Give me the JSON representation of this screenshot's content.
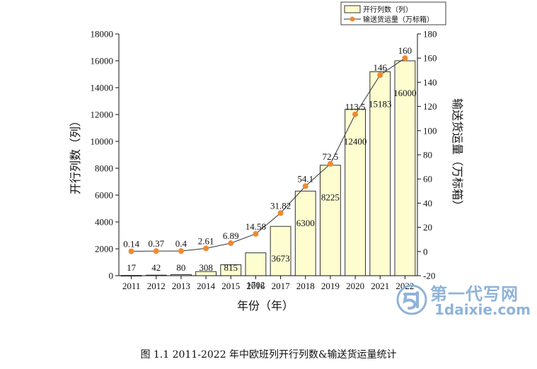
{
  "chart_data": {
    "type": "bar",
    "categories": [
      "2011",
      "2012",
      "2013",
      "2014",
      "2015",
      "2016",
      "2017",
      "2018",
      "2019",
      "2020",
      "2021",
      "2022"
    ],
    "xlabel": "年份（年）",
    "ylabel_left": "开行列数（列）",
    "ylabel_right": "输送货运量（万标箱）",
    "y_left_lim": [
      0,
      18000
    ],
    "y_left_ticks": [
      0,
      2000,
      4000,
      6000,
      8000,
      10000,
      12000,
      14000,
      16000,
      18000
    ],
    "y_right_lim": [
      -20,
      180
    ],
    "y_right_ticks": [
      -20,
      0,
      20,
      40,
      60,
      80,
      100,
      120,
      140,
      160,
      180
    ],
    "series": [
      {
        "name": "开行列数（列）",
        "type": "bar",
        "axis": "left",
        "values": [
          17,
          42,
          80,
          308,
          815,
          1702,
          3673,
          6300,
          8225,
          12400,
          15183,
          16000
        ],
        "labels": [
          "17",
          "42",
          "80",
          "308",
          "815",
          "1702",
          "3673",
          "6300",
          "8225",
          "12400",
          "15183",
          "16000"
        ]
      },
      {
        "name": "输送货运量（万标箱）",
        "type": "line",
        "axis": "right",
        "values": [
          0.14,
          0.37,
          0.4,
          2.61,
          6.89,
          14.58,
          31.82,
          54.1,
          72.5,
          113.5,
          146,
          160
        ],
        "labels": [
          "0.14",
          "0.37",
          "0.4",
          "2.61",
          "6.89",
          "14.58",
          "31.82",
          "54.1",
          "72.5",
          "113.5",
          "146",
          "160"
        ]
      }
    ],
    "legend_position": "top-right",
    "colors": {
      "bar_fill": "#fdfdd0",
      "bar_stroke": "#333333",
      "line": "#333333",
      "marker": "#f08a30"
    }
  },
  "caption": "图 1.1 2011-2022 年中欧班列开行列数&输送货运量统计",
  "watermark": {
    "cn": "第一代写网",
    "en": "1daixie.com"
  }
}
